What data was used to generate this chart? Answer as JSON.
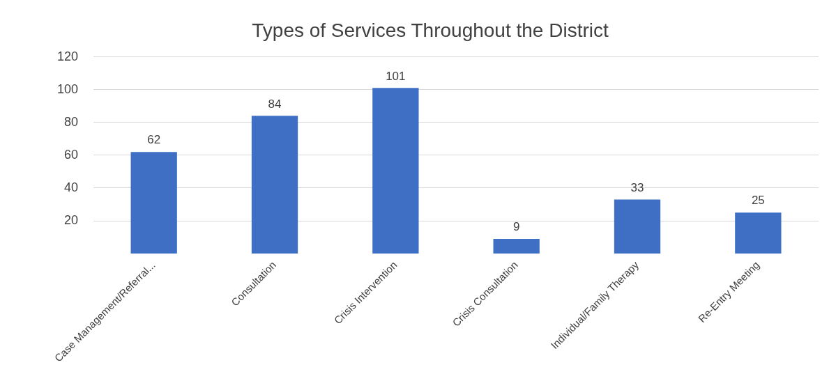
{
  "chart_data": {
    "type": "bar",
    "title": "Types of Services Throughout the District",
    "categories": [
      "Case Management/Referral...",
      "Consultation",
      "Crisis Intervention",
      "Crisis Consultation",
      "Individual/Family Therapy",
      "Re-Entry Meeting"
    ],
    "values": [
      62,
      84,
      101,
      9,
      33,
      25
    ],
    "color": "#3f6fc4",
    "ylim": [
      0,
      120
    ],
    "yticks": [
      20,
      40,
      60,
      80,
      100,
      120
    ],
    "grid": "y",
    "data_labels": true,
    "legend": false
  }
}
